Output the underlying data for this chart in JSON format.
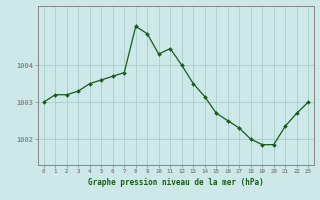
{
  "x": [
    0,
    1,
    2,
    3,
    4,
    5,
    6,
    7,
    8,
    9,
    10,
    11,
    12,
    13,
    14,
    15,
    16,
    17,
    18,
    19,
    20,
    21,
    22,
    23
  ],
  "y": [
    1003.0,
    1003.2,
    1003.2,
    1003.3,
    1003.5,
    1003.6,
    1003.7,
    1003.8,
    1005.05,
    1004.85,
    1004.3,
    1004.45,
    1004.0,
    1003.5,
    1003.15,
    1002.7,
    1002.5,
    1002.3,
    1002.0,
    1001.85,
    1001.85,
    1002.35,
    1002.7,
    1003.0
  ],
  "line_color": "#1a5c1a",
  "marker_color": "#1a5c1a",
  "bg_color": "#cce8e8",
  "grid_color": "#aacccc",
  "border_color": "#888888",
  "text_color": "#1a5c1a",
  "xlabel": "Graphe pression niveau de la mer (hPa)",
  "yticks": [
    1002,
    1003,
    1004
  ],
  "ylim": [
    1001.3,
    1005.6
  ],
  "xlim": [
    -0.5,
    23.5
  ],
  "figwidth": 3.2,
  "figheight": 2.0,
  "dpi": 100
}
